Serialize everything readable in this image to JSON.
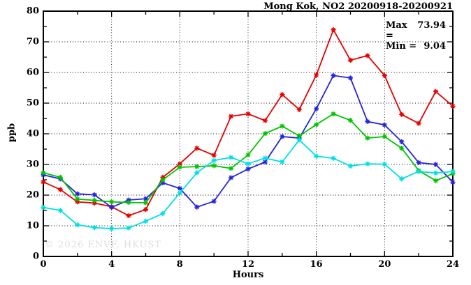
{
  "title": "Mong Kok, NO2 20200918-20200921",
  "annotation": {
    "max_label": "Max =",
    "max_value": "73.94",
    "min_label": "Min =",
    "min_value": "9.04"
  },
  "watermark": "© 2026 ENVF, HKUST",
  "chart_data": {
    "type": "line",
    "title": "Mong Kok, NO2 20200918-20200921",
    "xlabel": "Hours",
    "ylabel": "ppb",
    "xlim": [
      0,
      24
    ],
    "ylim": [
      0,
      80
    ],
    "x_major_ticks": [
      0,
      4,
      8,
      12,
      16,
      20,
      24
    ],
    "x_minor_ticks": [
      2,
      6,
      10,
      14,
      18,
      22
    ],
    "y_major_ticks": [
      0,
      10,
      20,
      30,
      40,
      50,
      60,
      70,
      80
    ],
    "y_minor_ticks": [
      5,
      15,
      25,
      35,
      45,
      55,
      65,
      75
    ],
    "grid": true,
    "legend_position": "none",
    "marker": "asterisk",
    "stat_max": 73.94,
    "stat_min": 9.04,
    "x": [
      0,
      1,
      2,
      3,
      4,
      5,
      6,
      7,
      8,
      9,
      10,
      11,
      12,
      13,
      14,
      15,
      16,
      17,
      18,
      19,
      20,
      21,
      22,
      23,
      24
    ],
    "series": [
      {
        "name": "series-1-red",
        "color": "#e60000",
        "values": [
          24.3,
          21.8,
          17.8,
          17.4,
          16.2,
          13.3,
          15.3,
          25.8,
          30.2,
          35.3,
          33.0,
          45.7,
          46.5,
          44.3,
          52.8,
          47.9,
          59.2,
          73.94,
          64.0,
          65.5,
          59.0,
          46.3,
          43.4,
          53.8,
          49.0
        ]
      },
      {
        "name": "series-2-blue",
        "color": "#2424dd",
        "values": [
          26.6,
          25.3,
          20.4,
          20.1,
          16.0,
          18.4,
          18.8,
          24.0,
          22.2,
          16.1,
          18.0,
          25.7,
          28.5,
          30.8,
          39.1,
          38.6,
          48.2,
          59.0,
          58.2,
          44.0,
          42.9,
          37.4,
          30.6,
          30.0,
          24.2
        ]
      },
      {
        "name": "series-3-green",
        "color": "#00c400",
        "values": [
          27.3,
          25.8,
          18.7,
          18.3,
          17.8,
          17.6,
          17.5,
          25.0,
          29.1,
          29.3,
          29.6,
          28.7,
          33.1,
          40.1,
          42.5,
          39.3,
          43.0,
          46.5,
          44.4,
          38.6,
          39.1,
          35.3,
          28.0,
          24.7,
          27.0
        ]
      },
      {
        "name": "series-4-cyan",
        "color": "#00e0e0",
        "values": [
          16.0,
          15.0,
          10.3,
          9.4,
          9.04,
          9.3,
          11.5,
          14.0,
          20.7,
          27.3,
          31.3,
          32.3,
          30.2,
          32.1,
          30.8,
          38.0,
          32.7,
          32.0,
          29.5,
          30.2,
          30.1,
          25.3,
          27.7,
          27.2,
          27.7
        ]
      }
    ]
  }
}
